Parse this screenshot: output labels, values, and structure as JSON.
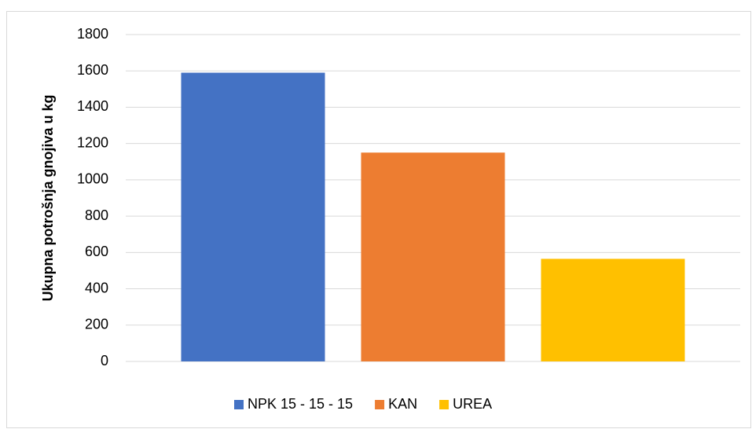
{
  "chart_data": {
    "type": "bar",
    "y_label": "Ukupna potrošnja gnojiva u kg",
    "categories": [
      null
    ],
    "series": [
      {
        "name": "NPK 15 - 15 - 15",
        "color": "#4472c4",
        "values": [
          1590
        ]
      },
      {
        "name": "KAN",
        "color": "#ed7d31",
        "values": [
          1150
        ]
      },
      {
        "name": "UREA",
        "color": "#ffc000",
        "values": [
          565
        ]
      }
    ],
    "ylim": [
      0,
      1800
    ],
    "yticks": [
      0,
      200,
      400,
      600,
      800,
      1000,
      1200,
      1400,
      1600,
      1800
    ],
    "grid": true,
    "legend": "bottom"
  }
}
